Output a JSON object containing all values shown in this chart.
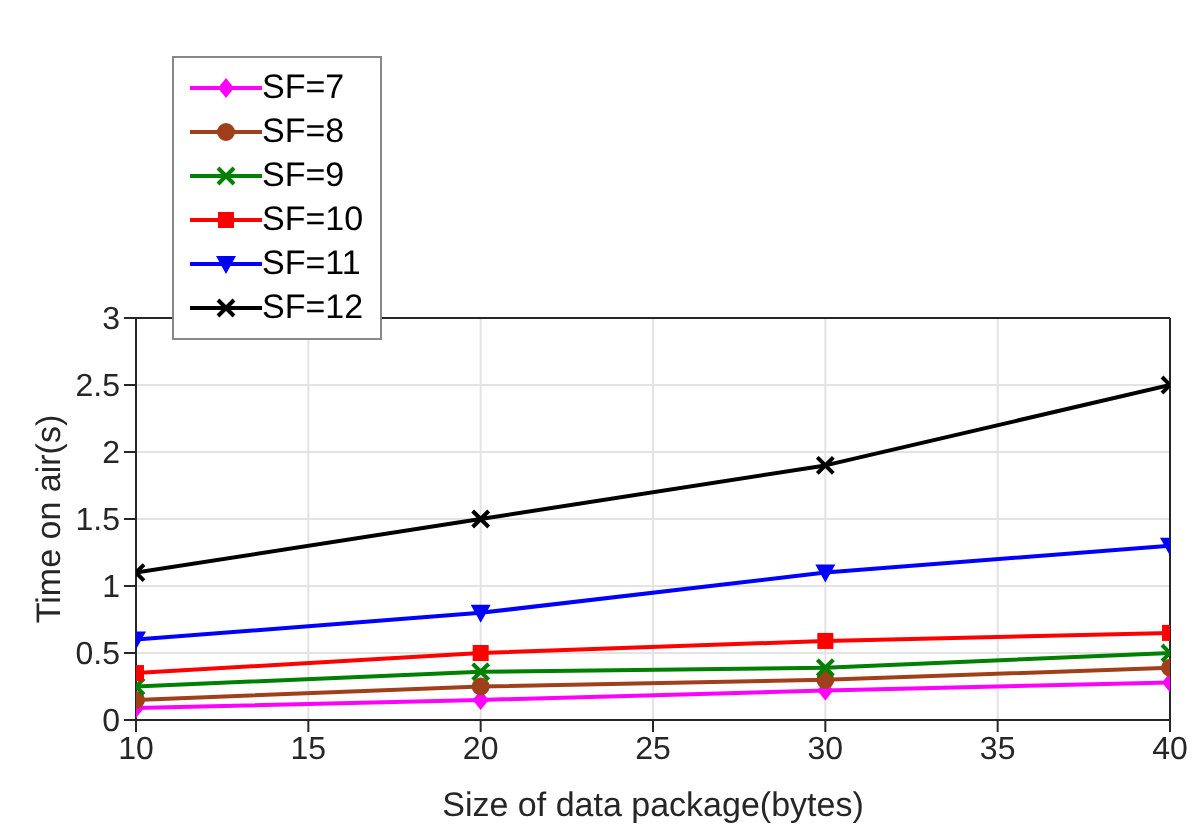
{
  "chart_data": {
    "type": "line",
    "xlabel": "Size of data package(bytes)",
    "ylabel": "Time on air(s)",
    "x": [
      10,
      20,
      30,
      40
    ],
    "series": [
      {
        "name": "SF=7",
        "color": "#ff00ff",
        "marker": "diamond",
        "values": [
          0.09,
          0.15,
          0.22,
          0.28
        ]
      },
      {
        "name": "SF=8",
        "color": "#a0401a",
        "marker": "circle",
        "values": [
          0.15,
          0.25,
          0.3,
          0.39
        ]
      },
      {
        "name": "SF=9",
        "color": "#008000",
        "marker": "cross",
        "values": [
          0.25,
          0.36,
          0.39,
          0.5
        ]
      },
      {
        "name": "SF=10",
        "color": "#ff0000",
        "marker": "square",
        "values": [
          0.35,
          0.5,
          0.59,
          0.65
        ]
      },
      {
        "name": "SF=11",
        "color": "#0000ff",
        "marker": "triangle",
        "values": [
          0.6,
          0.8,
          1.1,
          1.3
        ]
      },
      {
        "name": "SF=12",
        "color": "#000000",
        "marker": "cross",
        "values": [
          1.1,
          1.5,
          1.9,
          2.5
        ]
      }
    ],
    "xlim": [
      10,
      40
    ],
    "xticks": [
      10,
      15,
      20,
      25,
      30,
      35,
      40
    ],
    "ylim": [
      0,
      3
    ],
    "yticks": [
      0,
      0.5,
      1,
      1.5,
      2,
      2.5,
      3
    ],
    "grid": true,
    "legend": "top left"
  }
}
